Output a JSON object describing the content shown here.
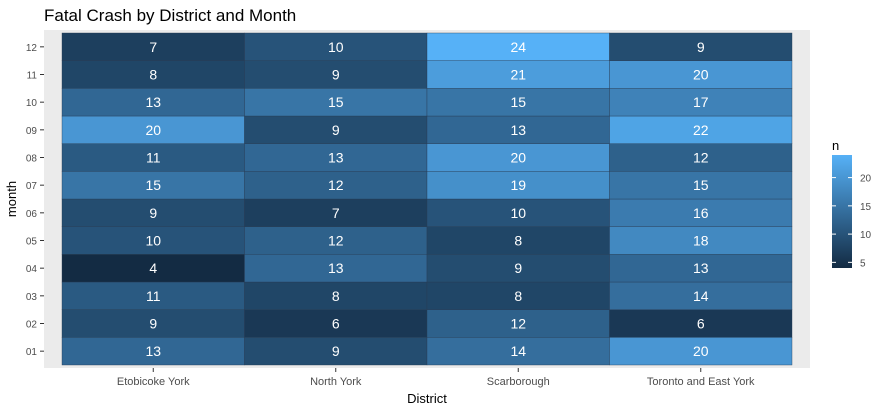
{
  "chart_data": {
    "type": "heatmap",
    "title": "Fatal Crash by District and Month",
    "xlabel": "District",
    "ylabel": "month",
    "categories": [
      "Etobicoke York",
      "North York",
      "Scarborough",
      "Toronto and East York"
    ],
    "months": [
      "01",
      "02",
      "03",
      "04",
      "05",
      "06",
      "07",
      "08",
      "09",
      "10",
      "11",
      "12"
    ],
    "values": {
      "Etobicoke York": [
        13,
        9,
        11,
        4,
        10,
        9,
        15,
        11,
        20,
        13,
        8,
        7
      ],
      "North York": [
        9,
        6,
        8,
        13,
        12,
        7,
        12,
        13,
        9,
        15,
        9,
        10
      ],
      "Scarborough": [
        14,
        12,
        8,
        9,
        8,
        10,
        19,
        20,
        13,
        15,
        21,
        24
      ],
      "Toronto and East York": [
        20,
        6,
        14,
        13,
        18,
        16,
        15,
        12,
        22,
        17,
        20,
        9
      ]
    },
    "legend": {
      "title": "n",
      "ticks": [
        5,
        10,
        15,
        20
      ],
      "range": [
        4,
        24
      ],
      "low_color": "#132B43",
      "high_color": "#56B1F7"
    },
    "grid": true,
    "panel_background": "#EBEBEB"
  }
}
